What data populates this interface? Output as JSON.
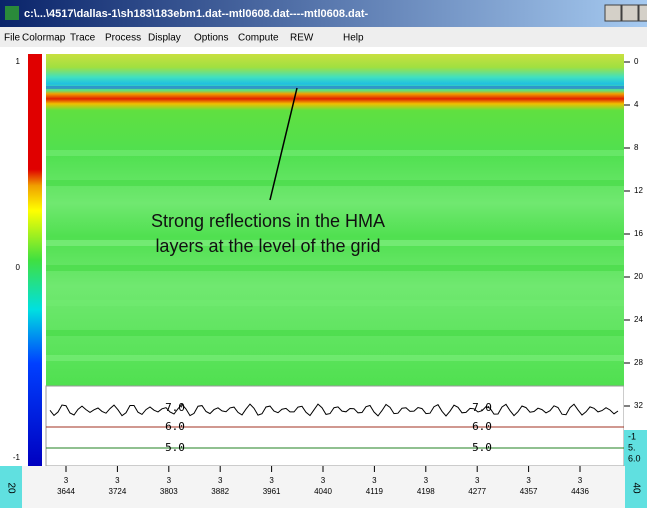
{
  "window": {
    "title": "c:\\...\\4517\\dallas-1\\sh183\\183ebm1.dat--mtl0608.dat----mtl0608.dat-"
  },
  "menu": {
    "items": [
      "File",
      "Colormap",
      "Trace",
      "Process",
      "Display",
      "Options",
      "Compute",
      "REW",
      "Help"
    ]
  },
  "annotation": {
    "lines": [
      "Strong reflections in the HMA",
      "layers at the level of the grid"
    ]
  },
  "left_scale": {
    "labels": [
      "1",
      "0",
      "-1"
    ]
  },
  "right_scale": {
    "labels": [
      "0",
      "4",
      "8",
      "12",
      "16",
      "20",
      "24",
      "28",
      "32"
    ]
  },
  "trace_panel": {
    "labels_left": [
      "7.0",
      "6.0",
      "5.0"
    ],
    "labels_right": [
      "7.0",
      "6.0",
      "5.0"
    ],
    "legend": [
      "-1",
      "5.",
      "6.0"
    ]
  },
  "bottom_axis": {
    "prefix": "3",
    "labels": [
      "3644",
      "3724",
      "3803",
      "3882",
      "3961",
      "4040",
      "4119",
      "4198",
      "4277",
      "4357",
      "4436"
    ]
  },
  "corners": {
    "left": "20",
    "right": "40"
  }
}
